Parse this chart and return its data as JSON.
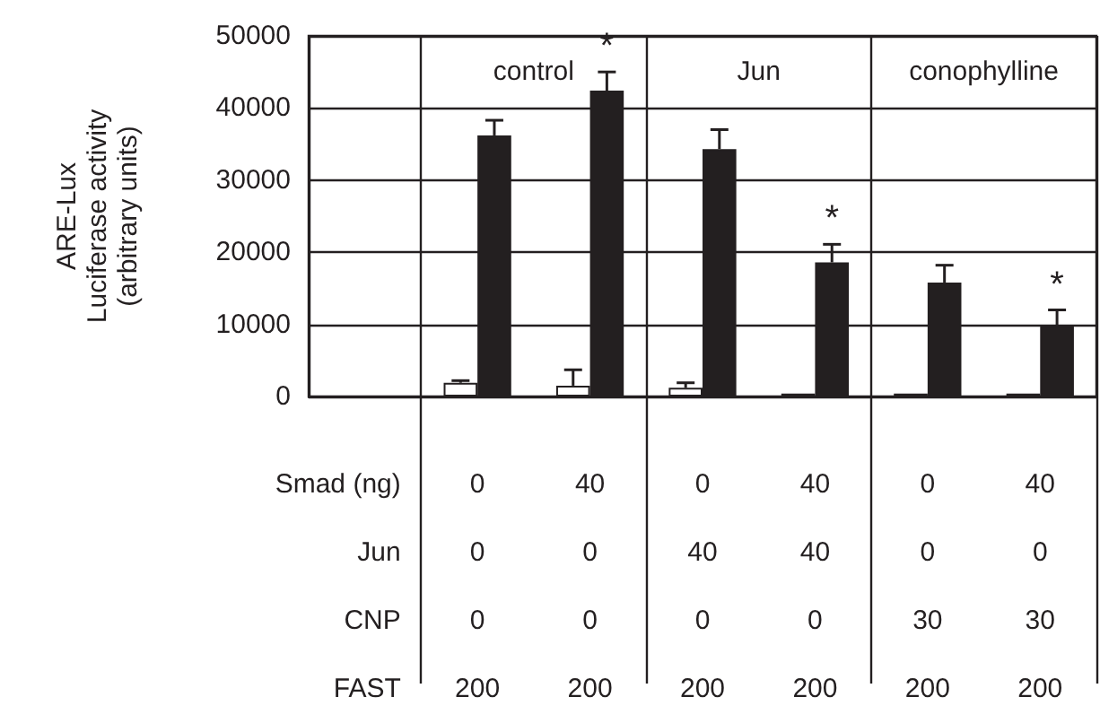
{
  "chart_data": {
    "type": "bar",
    "ylabel": "ARE-Lux\nLuciferase activity\n(arbitrary units)",
    "categories": [
      "Smad (ng)\nJun\nCNP\nFAST",
      "0\n0\n0\n200",
      "40\n0\n0\n200",
      "0\n40\n0\n200",
      "40\n40\n0\n200",
      "0\n0\n30\n200",
      "40\n0\n30\n200"
    ],
    "series": [
      {
        "color": "#ffffff",
        "values": [
          null,
          1900,
          1500,
          1200,
          400,
          400,
          400
        ],
        "errors": [
          null,
          [
            1900,
            2200
          ],
          [
            1500,
            3700
          ],
          [
            1200,
            1900
          ],
          null,
          null,
          null
        ]
      },
      {
        "color": "#231f20",
        "values": [
          null,
          36200,
          42400,
          34300,
          18600,
          15800,
          9800
        ],
        "errors": [
          null,
          [
            36200,
            38300
          ],
          [
            42400,
            45000
          ],
          [
            34300,
            37000
          ],
          [
            18600,
            21100
          ],
          [
            15800,
            18200
          ],
          [
            9800,
            12000
          ]
        ],
        "value_labels": [
          null,
          null,
          "*",
          null,
          "*",
          null,
          "*"
        ]
      }
    ],
    "annotations": [
      "control",
      "Jun",
      "conophylline"
    ],
    "ylim": [
      0,
      50000
    ],
    "yticks": [
      0,
      10000,
      20000,
      30000,
      40000,
      50000
    ],
    "grid": true
  }
}
